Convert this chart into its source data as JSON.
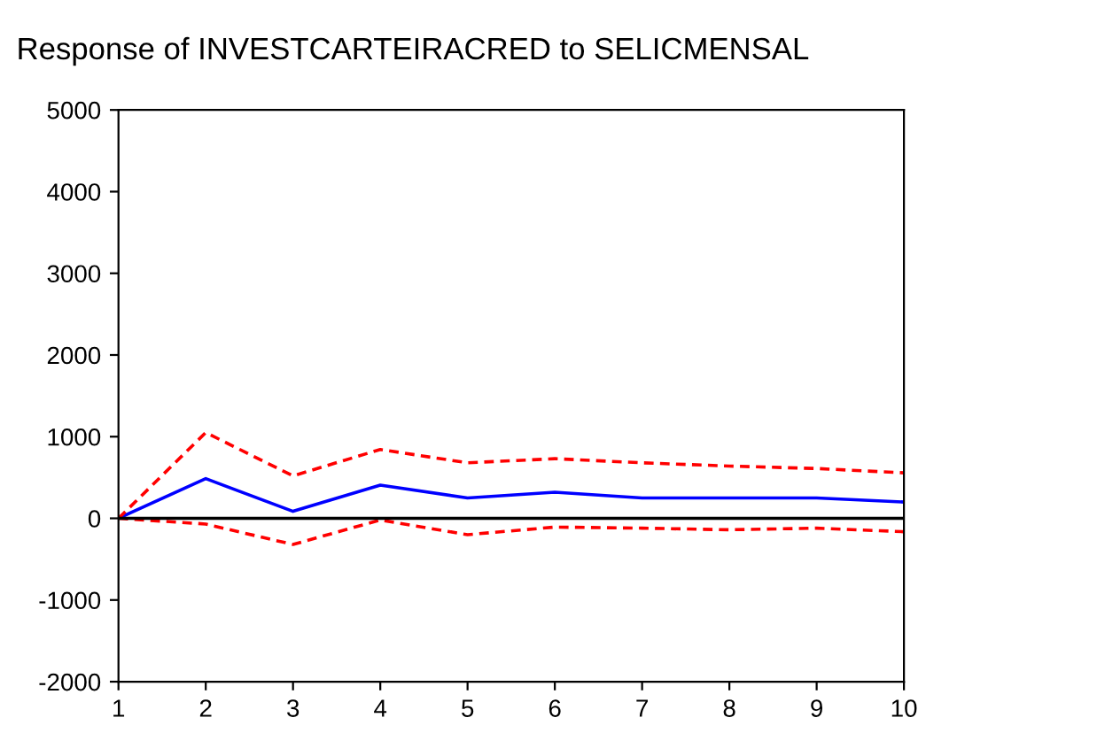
{
  "chart_data": {
    "type": "line",
    "title": "Response of INVESTCARTEIRACRED to SELICMENSAL",
    "x": [
      1,
      2,
      3,
      4,
      5,
      6,
      7,
      8,
      9,
      10
    ],
    "series": [
      {
        "color": "#0000ff",
        "line_style": "solid",
        "values": [
          0,
          486,
          86,
          407,
          250,
          320,
          250,
          250,
          250,
          200
        ]
      },
      {
        "color": "#ff0000",
        "line_style": "dashed",
        "values": [
          0,
          1050,
          520,
          843,
          680,
          730,
          680,
          640,
          610,
          557
        ]
      },
      {
        "color": "#ff0000",
        "line_style": "dashed",
        "values": [
          0,
          -70,
          -320,
          -20,
          -200,
          -107,
          -120,
          -140,
          -120,
          -164
        ]
      }
    ],
    "xlim": [
      1,
      10
    ],
    "xticks": [
      1,
      2,
      3,
      4,
      5,
      6,
      7,
      8,
      9,
      10
    ],
    "ylim": [
      -2000,
      5000
    ],
    "yticks": [
      -2000,
      -1000,
      0,
      1000,
      2000,
      3000,
      4000,
      5000
    ],
    "ref_lines": [
      {
        "axis": "y",
        "value": 0,
        "color": "#000000"
      }
    ],
    "grid": false,
    "legend": false,
    "marker": "none"
  }
}
